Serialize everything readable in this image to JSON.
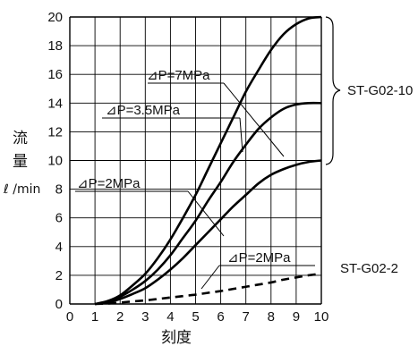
{
  "chart_data": {
    "type": "line",
    "xlabel": "刻度",
    "ylabel": "流量",
    "ylabel_line1": "流",
    "ylabel_line2": "量",
    "yunit": "ℓ /min",
    "xlim": [
      0,
      10
    ],
    "ylim": [
      0,
      20
    ],
    "xticks": [
      0,
      1,
      2,
      3,
      4,
      5,
      6,
      7,
      8,
      9,
      10
    ],
    "yticks": [
      0,
      2,
      4,
      6,
      8,
      10,
      12,
      14,
      16,
      18,
      20
    ],
    "grid": true,
    "series": [
      {
        "name": "⊿P=7MPa",
        "group": "ST-G02-10",
        "style": "solid",
        "x": [
          1,
          1.5,
          2,
          2.5,
          3,
          3.5,
          4,
          4.5,
          5,
          5.5,
          6,
          6.5,
          7,
          7.5,
          8,
          8.5,
          9,
          9.5,
          10
        ],
        "y": [
          0,
          0.2,
          0.6,
          1.3,
          2.1,
          3.2,
          4.5,
          6.0,
          7.6,
          9.4,
          11.2,
          13.0,
          14.8,
          16.3,
          17.7,
          18.8,
          19.5,
          19.9,
          20.0
        ]
      },
      {
        "name": "⊿P=3.5MPa",
        "group": "ST-G02-10",
        "style": "solid",
        "x": [
          1,
          1.5,
          2,
          2.5,
          3,
          3.5,
          4,
          4.5,
          5,
          5.5,
          6,
          6.5,
          7,
          7.5,
          8,
          8.5,
          9,
          9.5,
          10
        ],
        "y": [
          0,
          0.15,
          0.5,
          1.0,
          1.6,
          2.4,
          3.4,
          4.6,
          5.8,
          7.2,
          8.5,
          9.9,
          11.1,
          12.2,
          13.0,
          13.6,
          13.9,
          14.0,
          14.0
        ]
      },
      {
        "name": "⊿P=2MPa",
        "group": "ST-G02-10",
        "style": "solid",
        "x": [
          1,
          1.5,
          2,
          2.5,
          3,
          3.5,
          4,
          4.5,
          5,
          5.5,
          6,
          6.5,
          7,
          7.5,
          8,
          8.5,
          9,
          9.5,
          10
        ],
        "y": [
          0,
          0.1,
          0.35,
          0.7,
          1.1,
          1.7,
          2.4,
          3.2,
          4.1,
          5.0,
          5.9,
          6.8,
          7.6,
          8.4,
          9.0,
          9.4,
          9.7,
          9.9,
          10.0
        ]
      },
      {
        "name": "⊿P=2MPa",
        "group": "ST-G02-2",
        "style": "dashed",
        "x": [
          1,
          1.5,
          2,
          2.5,
          3,
          3.5,
          4,
          4.5,
          5,
          5.5,
          6,
          6.5,
          7,
          7.5,
          8,
          8.5,
          9,
          9.5,
          10
        ],
        "y": [
          0,
          0.03,
          0.1,
          0.18,
          0.25,
          0.35,
          0.45,
          0.55,
          0.65,
          0.78,
          0.9,
          1.05,
          1.2,
          1.35,
          1.5,
          1.7,
          1.85,
          2.0,
          2.1
        ]
      }
    ],
    "groups": [
      {
        "name": "ST-G02-10"
      },
      {
        "name": "ST-G02-2"
      }
    ],
    "colors": {
      "line": "#000000",
      "grid": "#000000",
      "background": "#ffffff"
    }
  }
}
